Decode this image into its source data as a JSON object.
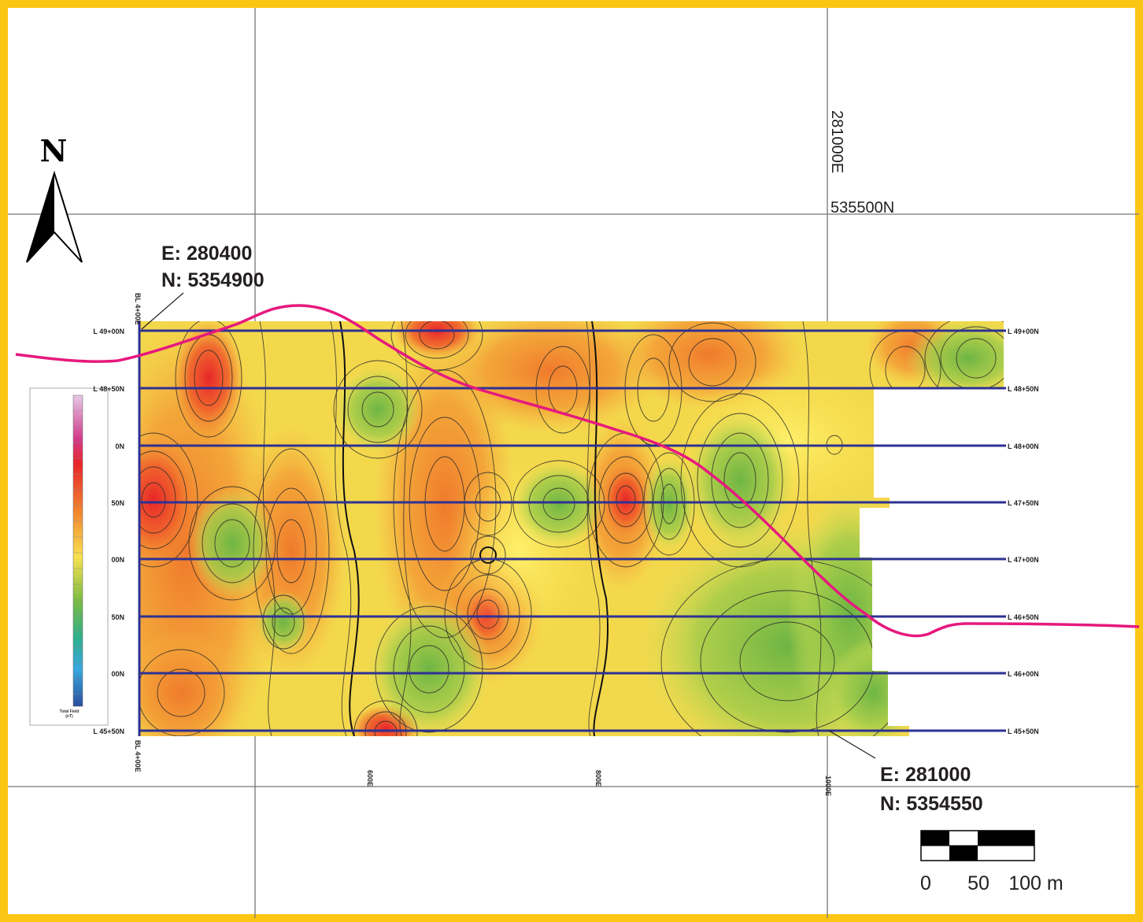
{
  "map": {
    "north_label": "N",
    "coords_top_left": {
      "e": "E: 280400",
      "n": "N: 5354900"
    },
    "coords_bottom_right": {
      "e": "E: 281000",
      "n": "N: 5354550"
    },
    "grid_label_east": "281000E",
    "grid_label_north": "535500N",
    "baseline_label": "BL 4+00E",
    "survey_lines_right": [
      "L 49+00N",
      "L 48+50N",
      "L 48+00N",
      "L 47+50N",
      "L 47+00N",
      "L 46+50N",
      "L 46+00N",
      "L 45+50N"
    ],
    "survey_lines_left": [
      "L 49+00N",
      "L 48+50N",
      "0N",
      "50N",
      "00N",
      "50N",
      "00N",
      "L 45+50N"
    ],
    "x_ticks": [
      "600E",
      "800E",
      "1000E"
    ],
    "scale": {
      "zero": "0",
      "mid": "50",
      "end": "100 m"
    },
    "legend_title": "Total Field",
    "legend_unit": "(nT)",
    "colors": {
      "border": "#fcc614",
      "survey_line": "#2e3192",
      "creek": "#e6197e",
      "grid": "#777777"
    }
  }
}
